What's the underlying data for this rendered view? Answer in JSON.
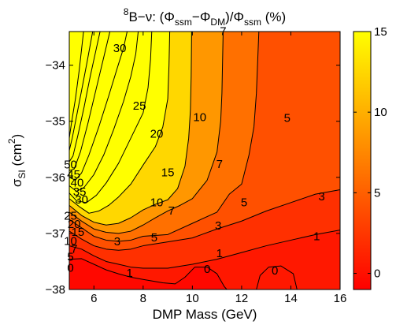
{
  "chart_data": {
    "type": "heatmap",
    "subtype": "filled-contour",
    "title": {
      "parts": [
        {
          "t": "8",
          "s": "sup"
        },
        {
          "t": "B−ν: (Φ",
          "s": "n"
        },
        {
          "t": "ssm",
          "s": "sub"
        },
        {
          "t": "−Φ",
          "s": "n"
        },
        {
          "t": "DM",
          "s": "sub"
        },
        {
          "t": ")/Φ",
          "s": "n"
        },
        {
          "t": "ssm",
          "s": "sub"
        },
        {
          "t": " (%)",
          "s": "n"
        }
      ]
    },
    "xlabel": "DMP Mass (GeV)",
    "ylabel": {
      "parts": [
        {
          "t": "σ",
          "s": "n"
        },
        {
          "t": "SI",
          "s": "sub"
        },
        {
          "t": " (cm",
          "s": "n"
        },
        {
          "t": "2",
          "s": "sup"
        },
        {
          "t": ")",
          "s": "n"
        }
      ]
    },
    "xlim": [
      5,
      16
    ],
    "ylim": [
      -38,
      -33.4
    ],
    "xticks": [
      6,
      8,
      10,
      12,
      14,
      16
    ],
    "xtick_labels": [
      "6",
      "8",
      "10",
      "12",
      "14",
      "16"
    ],
    "yticks": [
      -34,
      -35,
      -36,
      -37,
      -38
    ],
    "ytick_labels": [
      "−34",
      "−35",
      "−36",
      "−37",
      "−38"
    ],
    "colorbar": {
      "range": [
        -1,
        15
      ],
      "ticks": [
        0,
        5,
        10,
        15
      ],
      "tick_labels": [
        "0",
        "5",
        "10",
        "15"
      ],
      "colormap": "autumn",
      "colors": {
        "low": "#ff0000",
        "high": "#ffff00"
      }
    },
    "levels": [
      -1,
      0,
      1,
      3,
      5,
      7,
      10,
      15,
      20,
      25,
      30,
      35,
      40,
      45,
      50
    ],
    "contours": [
      {
        "level": 0,
        "points": [
          [
            5.0,
            -37.46
          ],
          [
            5.5,
            -37.45
          ],
          [
            6.0,
            -37.55
          ],
          [
            6.5,
            -37.65
          ],
          [
            7.0,
            -37.72
          ],
          [
            7.5,
            -37.78
          ],
          [
            8.0,
            -37.82
          ],
          [
            8.8,
            -37.88
          ],
          [
            9.3,
            -37.9
          ],
          [
            9.7,
            -37.78
          ],
          [
            10.1,
            -37.6
          ],
          [
            10.6,
            -37.6
          ],
          [
            11.0,
            -37.72
          ],
          [
            11.3,
            -37.95
          ],
          [
            11.4,
            -38.0
          ]
        ]
      },
      {
        "level": 0,
        "points": [
          [
            12.6,
            -38.0
          ],
          [
            12.75,
            -37.75
          ],
          [
            13.1,
            -37.6
          ],
          [
            13.6,
            -37.58
          ],
          [
            14.1,
            -37.72
          ],
          [
            14.25,
            -38.0
          ]
        ]
      },
      {
        "level": 1,
        "points": [
          [
            5.0,
            -37.22
          ],
          [
            5.5,
            -37.28
          ],
          [
            6.0,
            -37.4
          ],
          [
            6.5,
            -37.5
          ],
          [
            7.0,
            -37.55
          ],
          [
            7.5,
            -37.6
          ],
          [
            8.0,
            -37.62
          ],
          [
            9.0,
            -37.62
          ],
          [
            10.0,
            -37.55
          ],
          [
            11.0,
            -37.46
          ],
          [
            12.0,
            -37.34
          ],
          [
            13.0,
            -37.22
          ],
          [
            14.0,
            -37.12
          ],
          [
            15.0,
            -37.02
          ],
          [
            16.0,
            -36.94
          ]
        ]
      },
      {
        "level": 3,
        "points": [
          [
            5.0,
            -36.96
          ],
          [
            5.5,
            -37.1
          ],
          [
            6.0,
            -37.22
          ],
          [
            6.5,
            -37.28
          ],
          [
            7.0,
            -37.3
          ],
          [
            7.5,
            -37.28
          ],
          [
            8.0,
            -37.22
          ],
          [
            9.0,
            -37.15
          ],
          [
            10.0,
            -37.08
          ],
          [
            11.0,
            -36.92
          ],
          [
            12.0,
            -36.78
          ],
          [
            13.0,
            -36.6
          ],
          [
            14.0,
            -36.45
          ],
          [
            15.0,
            -36.3
          ],
          [
            16.0,
            -36.22
          ]
        ]
      },
      {
        "level": 5,
        "points": [
          [
            5.0,
            -36.75
          ],
          [
            5.5,
            -36.9
          ],
          [
            6.0,
            -37.05
          ],
          [
            6.5,
            -37.12
          ],
          [
            7.0,
            -37.14
          ],
          [
            7.5,
            -37.12
          ],
          [
            8.0,
            -37.05
          ],
          [
            9.0,
            -37.02
          ],
          [
            10.0,
            -36.82
          ],
          [
            11.0,
            -36.62
          ],
          [
            11.5,
            -36.3
          ],
          [
            12.0,
            -36.12
          ],
          [
            12.3,
            -35.6
          ],
          [
            12.5,
            -35.1
          ],
          [
            12.6,
            -34.5
          ],
          [
            12.7,
            -33.4
          ]
        ]
      },
      {
        "level": 7,
        "points": [
          [
            5.0,
            -36.62
          ],
          [
            5.5,
            -36.78
          ],
          [
            6.0,
            -36.92
          ],
          [
            6.5,
            -36.98
          ],
          [
            7.0,
            -37.0
          ],
          [
            7.5,
            -36.96
          ],
          [
            8.0,
            -36.85
          ],
          [
            8.5,
            -36.72
          ],
          [
            9.0,
            -36.6
          ],
          [
            9.5,
            -36.5
          ],
          [
            10.0,
            -36.38
          ],
          [
            10.6,
            -36.05
          ],
          [
            11.0,
            -35.55
          ],
          [
            11.15,
            -35.0
          ],
          [
            11.2,
            -34.5
          ],
          [
            11.25,
            -33.4
          ]
        ]
      },
      {
        "level": 10,
        "points": [
          [
            5.0,
            -36.5
          ],
          [
            5.5,
            -36.68
          ],
          [
            6.0,
            -36.8
          ],
          [
            6.5,
            -36.85
          ],
          [
            7.0,
            -36.82
          ],
          [
            7.5,
            -36.72
          ],
          [
            8.0,
            -36.58
          ],
          [
            8.5,
            -36.48
          ],
          [
            9.0,
            -36.4
          ],
          [
            9.4,
            -36.2
          ],
          [
            9.7,
            -35.8
          ],
          [
            9.85,
            -35.3
          ],
          [
            9.92,
            -34.8
          ],
          [
            9.95,
            -34.2
          ],
          [
            9.97,
            -33.4
          ]
        ]
      },
      {
        "level": 15,
        "points": [
          [
            5.0,
            -36.38
          ],
          [
            5.4,
            -36.52
          ],
          [
            5.8,
            -36.64
          ],
          [
            6.2,
            -36.6
          ],
          [
            6.6,
            -36.5
          ],
          [
            7.0,
            -36.35
          ],
          [
            7.5,
            -36.12
          ],
          [
            8.0,
            -35.78
          ],
          [
            8.5,
            -35.45
          ],
          [
            8.8,
            -35.1
          ],
          [
            9.0,
            -34.6
          ],
          [
            9.05,
            -34.0
          ],
          [
            9.08,
            -33.4
          ]
        ]
      },
      {
        "level": 20,
        "points": [
          [
            5.0,
            -36.28
          ],
          [
            5.3,
            -36.42
          ],
          [
            5.7,
            -36.45
          ],
          [
            6.1,
            -36.32
          ],
          [
            6.5,
            -36.1
          ],
          [
            7.0,
            -35.75
          ],
          [
            7.5,
            -35.3
          ],
          [
            8.0,
            -34.85
          ],
          [
            8.2,
            -34.4
          ],
          [
            8.3,
            -33.9
          ],
          [
            8.35,
            -33.4
          ]
        ]
      },
      {
        "level": 25,
        "points": [
          [
            5.0,
            -36.15
          ],
          [
            5.3,
            -36.25
          ],
          [
            5.6,
            -36.18
          ],
          [
            6.0,
            -35.95
          ],
          [
            6.4,
            -35.6
          ],
          [
            6.8,
            -35.15
          ],
          [
            7.2,
            -34.65
          ],
          [
            7.5,
            -34.2
          ],
          [
            7.7,
            -33.8
          ],
          [
            7.8,
            -33.4
          ]
        ]
      },
      {
        "level": 30,
        "points": [
          [
            5.0,
            -36.0
          ],
          [
            5.25,
            -36.05
          ],
          [
            5.5,
            -35.92
          ],
          [
            5.8,
            -35.6
          ],
          [
            6.2,
            -35.1
          ],
          [
            6.6,
            -34.55
          ],
          [
            6.95,
            -34.05
          ],
          [
            7.2,
            -33.7
          ],
          [
            7.35,
            -33.4
          ]
        ]
      },
      {
        "level": 35,
        "points": [
          [
            5.0,
            -35.88
          ],
          [
            5.2,
            -35.85
          ],
          [
            5.45,
            -35.55
          ],
          [
            5.75,
            -35.05
          ],
          [
            6.05,
            -34.5
          ],
          [
            6.35,
            -33.95
          ],
          [
            6.65,
            -33.4
          ]
        ]
      },
      {
        "level": 40,
        "points": [
          [
            5.0,
            -35.72
          ],
          [
            5.15,
            -35.62
          ],
          [
            5.35,
            -35.25
          ],
          [
            5.6,
            -34.75
          ],
          [
            5.85,
            -34.2
          ],
          [
            6.1,
            -33.7
          ],
          [
            6.25,
            -33.4
          ]
        ]
      },
      {
        "level": 45,
        "points": [
          [
            5.0,
            -35.52
          ],
          [
            5.12,
            -35.3
          ],
          [
            5.3,
            -34.9
          ],
          [
            5.5,
            -34.45
          ],
          [
            5.72,
            -33.95
          ],
          [
            5.95,
            -33.4
          ]
        ]
      },
      {
        "level": 50,
        "points": [
          [
            5.0,
            -35.3
          ],
          [
            5.1,
            -35.0
          ],
          [
            5.25,
            -34.6
          ],
          [
            5.4,
            -34.1
          ],
          [
            5.58,
            -33.4
          ]
        ]
      }
    ],
    "contour_labels": [
      {
        "text": "30",
        "x": 7.05,
        "y": -33.7
      },
      {
        "text": "25",
        "x": 7.85,
        "y": -34.73
      },
      {
        "text": "20",
        "x": 8.55,
        "y": -35.23
      },
      {
        "text": "15",
        "x": 9.0,
        "y": -35.92
      },
      {
        "text": "10",
        "x": 10.3,
        "y": -34.93
      },
      {
        "text": "7",
        "x": 11.25,
        "y": -33.4
      },
      {
        "text": "7",
        "x": 11.1,
        "y": -35.77
      },
      {
        "text": "5",
        "x": 13.85,
        "y": -34.95
      },
      {
        "text": "10",
        "x": 8.55,
        "y": -36.45
      },
      {
        "text": "7",
        "x": 9.15,
        "y": -36.6
      },
      {
        "text": "5",
        "x": 12.1,
        "y": -36.45
      },
      {
        "text": "3",
        "x": 15.25,
        "y": -36.35
      },
      {
        "text": "3",
        "x": 11.05,
        "y": -36.87
      },
      {
        "text": "5",
        "x": 8.45,
        "y": -37.08
      },
      {
        "text": "3",
        "x": 6.95,
        "y": -37.15
      },
      {
        "text": "1",
        "x": 11.1,
        "y": -37.36
      },
      {
        "text": "1",
        "x": 15.05,
        "y": -37.06
      },
      {
        "text": "1",
        "x": 7.45,
        "y": -37.71
      },
      {
        "text": "0",
        "x": 10.6,
        "y": -37.64
      },
      {
        "text": "0",
        "x": 13.35,
        "y": -37.67
      },
      {
        "text": "50",
        "x": 5.05,
        "y": -35.78
      },
      {
        "text": "45",
        "x": 5.18,
        "y": -35.95
      },
      {
        "text": "40",
        "x": 5.32,
        "y": -36.1
      },
      {
        "text": "35",
        "x": 5.42,
        "y": -36.26
      },
      {
        "text": "30",
        "x": 5.5,
        "y": -36.4
      },
      {
        "text": "25",
        "x": 5.05,
        "y": -36.69
      },
      {
        "text": "20",
        "x": 5.2,
        "y": -36.84
      },
      {
        "text": "15",
        "x": 5.35,
        "y": -36.98
      },
      {
        "text": "10",
        "x": 5.05,
        "y": -37.14
      },
      {
        "text": "7",
        "x": 5.2,
        "y": -37.28
      },
      {
        "text": "5",
        "x": 5.05,
        "y": -37.42
      },
      {
        "text": "0",
        "x": 5.05,
        "y": -37.62
      }
    ]
  }
}
